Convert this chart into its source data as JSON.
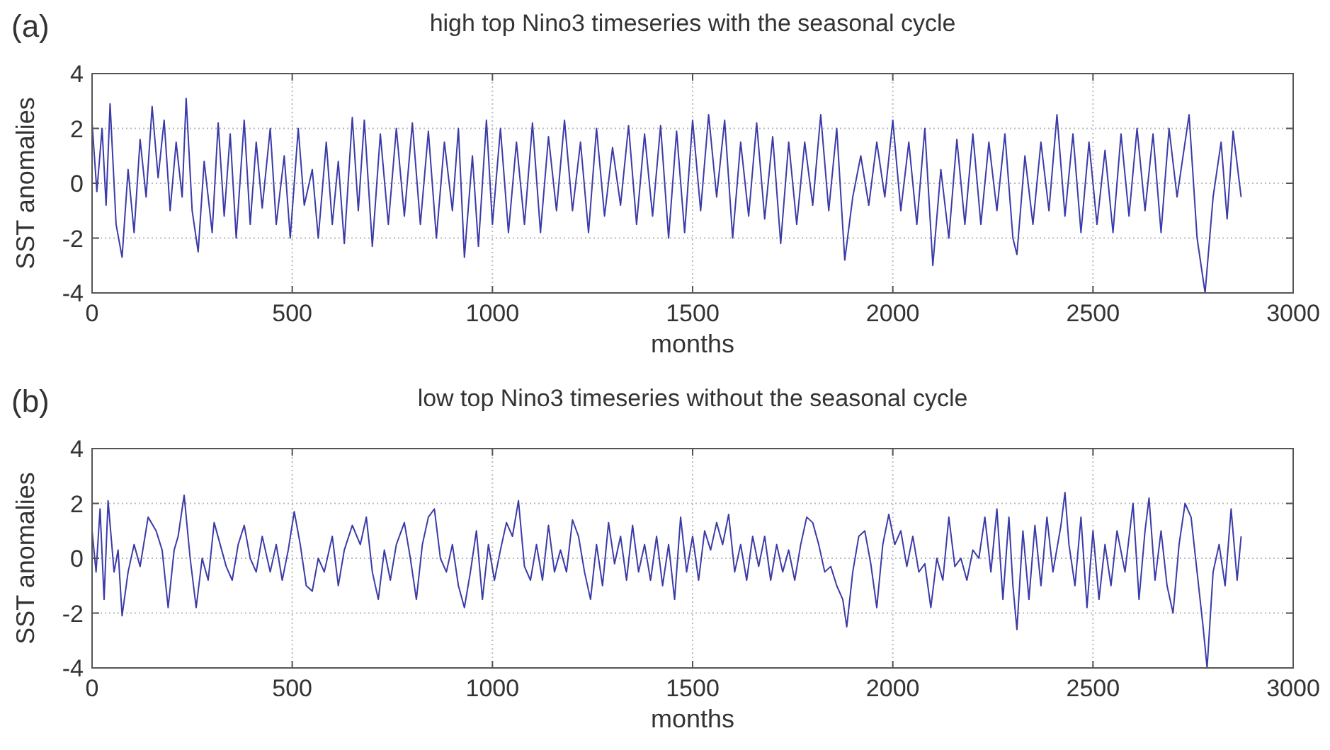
{
  "chart_data": [
    {
      "type": "line",
      "title": "high top Nino3 timeseries with the seasonal cycle",
      "xlabel": "months",
      "ylabel": "SST anomalies",
      "annotations": [
        "(a)"
      ],
      "xlim": [
        0,
        3000
      ],
      "xticks": [
        0,
        500,
        1000,
        1500,
        2000,
        2500,
        3000
      ],
      "ylim": [
        -4,
        4
      ],
      "yticks": [
        -4,
        -2,
        0,
        2,
        4
      ],
      "grid": true,
      "series": [
        {
          "color": "#3b3ba8",
          "x": [
            0,
            12,
            25,
            35,
            45,
            60,
            75,
            90,
            105,
            120,
            135,
            150,
            165,
            180,
            195,
            210,
            225,
            235,
            250,
            265,
            280,
            300,
            315,
            330,
            345,
            360,
            380,
            395,
            410,
            425,
            445,
            460,
            480,
            495,
            515,
            530,
            550,
            565,
            585,
            600,
            615,
            630,
            650,
            665,
            680,
            700,
            720,
            740,
            760,
            780,
            800,
            820,
            840,
            860,
            880,
            900,
            915,
            930,
            950,
            965,
            985,
            1000,
            1020,
            1040,
            1060,
            1080,
            1100,
            1120,
            1140,
            1160,
            1180,
            1200,
            1220,
            1240,
            1260,
            1280,
            1300,
            1320,
            1340,
            1360,
            1380,
            1400,
            1420,
            1440,
            1460,
            1480,
            1500,
            1520,
            1540,
            1560,
            1580,
            1600,
            1620,
            1640,
            1660,
            1680,
            1700,
            1720,
            1740,
            1760,
            1780,
            1800,
            1820,
            1840,
            1860,
            1880,
            1900,
            1920,
            1940,
            1960,
            1980,
            2000,
            2020,
            2040,
            2060,
            2080,
            2100,
            2120,
            2140,
            2160,
            2180,
            2200,
            2220,
            2240,
            2260,
            2280,
            2300,
            2310,
            2330,
            2350,
            2370,
            2390,
            2410,
            2430,
            2450,
            2470,
            2490,
            2510,
            2530,
            2550,
            2570,
            2590,
            2610,
            2630,
            2650,
            2670,
            2690,
            2710,
            2740,
            2760,
            2780,
            2800,
            2820,
            2835,
            2850,
            2870
          ],
          "values": [
            2.2,
            -0.3,
            2.0,
            -0.8,
            2.9,
            -1.5,
            -2.7,
            0.5,
            -1.8,
            1.6,
            -0.5,
            2.8,
            0.2,
            2.3,
            -1.0,
            1.5,
            -0.5,
            3.1,
            -1.0,
            -2.5,
            0.8,
            -1.8,
            2.2,
            -1.2,
            1.8,
            -2.0,
            2.3,
            -1.5,
            1.5,
            -0.9,
            2.0,
            -1.5,
            1.0,
            -2.0,
            2.0,
            -0.8,
            0.5,
            -2.0,
            1.5,
            -1.5,
            0.8,
            -2.2,
            2.4,
            -1.0,
            2.3,
            -2.3,
            1.8,
            -1.5,
            2.0,
            -1.2,
            2.2,
            -1.5,
            1.9,
            -2.0,
            1.5,
            -1.0,
            2.0,
            -2.7,
            1.0,
            -2.3,
            2.3,
            -1.5,
            2.0,
            -1.8,
            1.5,
            -1.5,
            2.2,
            -1.8,
            1.7,
            -1.0,
            2.3,
            -1.0,
            1.5,
            -1.8,
            2.0,
            -1.2,
            1.3,
            -0.8,
            2.1,
            -1.5,
            1.8,
            -1.2,
            2.1,
            -2.0,
            1.9,
            -1.8,
            2.3,
            -1.0,
            2.5,
            -0.5,
            2.3,
            -2.0,
            1.5,
            -1.2,
            2.2,
            -1.3,
            1.7,
            -2.2,
            1.5,
            -1.5,
            1.5,
            -0.8,
            2.5,
            -1.0,
            2.0,
            -2.8,
            -0.5,
            1.0,
            -0.8,
            1.5,
            -0.5,
            2.3,
            -1.0,
            1.5,
            -1.5,
            2.0,
            -3.0,
            0.5,
            -2.0,
            1.6,
            -1.5,
            1.8,
            -1.5,
            1.5,
            -1.0,
            1.8,
            -2.0,
            -2.6,
            1.0,
            -1.5,
            1.5,
            -1.0,
            2.5,
            -1.2,
            1.8,
            -1.8,
            1.5,
            -1.5,
            1.2,
            -1.8,
            1.8,
            -1.2,
            2.0,
            -1.0,
            1.8,
            -1.8,
            2.0,
            -0.5,
            2.5,
            -2.0,
            -4.0,
            -0.5,
            1.5,
            -1.3,
            1.9,
            -0.5
          ]
        }
      ]
    },
    {
      "type": "line",
      "title": "low top Nino3 timeseries without the seasonal cycle",
      "xlabel": "months",
      "ylabel": "SST anomalies",
      "annotations": [
        "(b)"
      ],
      "xlim": [
        0,
        3000
      ],
      "xticks": [
        0,
        500,
        1000,
        1500,
        2000,
        2500,
        3000
      ],
      "ylim": [
        -4,
        4
      ],
      "yticks": [
        -4,
        -2,
        0,
        2,
        4
      ],
      "grid": true,
      "series": [
        {
          "color": "#3b3ba8",
          "x": [
            0,
            10,
            20,
            30,
            40,
            55,
            65,
            75,
            90,
            105,
            120,
            140,
            160,
            175,
            190,
            205,
            215,
            230,
            245,
            260,
            275,
            290,
            305,
            320,
            335,
            350,
            365,
            380,
            395,
            410,
            425,
            445,
            460,
            475,
            490,
            505,
            520,
            535,
            550,
            565,
            580,
            600,
            615,
            630,
            650,
            670,
            685,
            700,
            715,
            730,
            745,
            760,
            780,
            795,
            810,
            825,
            840,
            855,
            870,
            885,
            900,
            915,
            930,
            945,
            960,
            975,
            990,
            1005,
            1020,
            1035,
            1050,
            1065,
            1080,
            1095,
            1110,
            1125,
            1140,
            1155,
            1170,
            1185,
            1200,
            1215,
            1230,
            1245,
            1260,
            1275,
            1290,
            1305,
            1320,
            1335,
            1350,
            1365,
            1380,
            1395,
            1410,
            1425,
            1440,
            1455,
            1470,
            1485,
            1500,
            1515,
            1530,
            1545,
            1560,
            1575,
            1590,
            1605,
            1620,
            1635,
            1650,
            1665,
            1680,
            1695,
            1710,
            1725,
            1740,
            1755,
            1770,
            1785,
            1800,
            1815,
            1830,
            1845,
            1860,
            1875,
            1885,
            1900,
            1915,
            1930,
            1945,
            1960,
            1975,
            1990,
            2005,
            2020,
            2035,
            2050,
            2065,
            2080,
            2095,
            2110,
            2125,
            2140,
            2155,
            2170,
            2185,
            2200,
            2215,
            2230,
            2245,
            2260,
            2275,
            2290,
            2300,
            2310,
            2325,
            2340,
            2355,
            2370,
            2385,
            2400,
            2420,
            2430,
            2440,
            2455,
            2470,
            2485,
            2500,
            2515,
            2530,
            2545,
            2560,
            2580,
            2600,
            2615,
            2630,
            2640,
            2655,
            2670,
            2685,
            2700,
            2715,
            2730,
            2745,
            2760,
            2775,
            2785,
            2800,
            2815,
            2830,
            2845,
            2860,
            2870
          ],
          "values": [
            1.0,
            -0.5,
            1.8,
            -1.5,
            2.1,
            -0.5,
            0.3,
            -2.1,
            -0.5,
            0.5,
            -0.3,
            1.5,
            1.0,
            0.3,
            -1.8,
            0.3,
            0.8,
            2.3,
            0.0,
            -1.8,
            0.0,
            -0.8,
            1.3,
            0.5,
            -0.3,
            -0.8,
            0.5,
            1.2,
            0.0,
            -0.5,
            0.8,
            -0.5,
            0.5,
            -0.8,
            0.3,
            1.7,
            0.5,
            -1.0,
            -1.2,
            0.0,
            -0.5,
            0.8,
            -1.0,
            0.3,
            1.2,
            0.5,
            1.5,
            -0.5,
            -1.5,
            0.3,
            -0.8,
            0.5,
            1.3,
            0.0,
            -1.5,
            0.5,
            1.5,
            1.8,
            0.0,
            -0.5,
            0.5,
            -1.0,
            -1.8,
            -0.5,
            1.0,
            -1.5,
            0.5,
            -0.8,
            0.3,
            1.3,
            0.8,
            2.1,
            -0.3,
            -0.8,
            0.5,
            -0.8,
            1.2,
            -0.5,
            0.3,
            -0.5,
            1.4,
            0.8,
            -0.5,
            -1.5,
            0.5,
            -1.0,
            1.3,
            -0.2,
            0.8,
            -0.8,
            1.2,
            -0.5,
            0.5,
            -0.8,
            0.8,
            -1.0,
            0.5,
            -1.5,
            1.5,
            -0.5,
            0.8,
            -0.8,
            1.0,
            0.3,
            1.3,
            0.5,
            1.6,
            -0.5,
            0.5,
            -0.8,
            0.8,
            -0.3,
            0.8,
            -0.8,
            0.5,
            -0.5,
            0.3,
            -0.8,
            0.5,
            1.5,
            1.3,
            0.5,
            -0.5,
            -0.3,
            -1.0,
            -1.5,
            -2.5,
            -0.5,
            0.8,
            1.0,
            -0.2,
            -1.8,
            0.5,
            1.6,
            0.5,
            1.0,
            -0.3,
            0.8,
            -0.5,
            -0.2,
            -1.8,
            0.0,
            -0.8,
            1.5,
            -0.3,
            0.0,
            -0.8,
            0.3,
            0.0,
            1.5,
            -0.5,
            1.8,
            -1.5,
            1.5,
            -1.0,
            -2.6,
            1.0,
            -1.5,
            1.2,
            -1.0,
            1.5,
            -0.5,
            1.2,
            2.4,
            0.5,
            -1.0,
            1.5,
            -1.8,
            1.0,
            -1.5,
            0.5,
            -1.0,
            1.0,
            -0.5,
            2.0,
            -1.5,
            1.0,
            2.2,
            -0.8,
            1.0,
            -1.0,
            -2.0,
            0.5,
            2.0,
            1.5,
            -0.5,
            -2.5,
            -4.0,
            -0.5,
            0.5,
            -1.0,
            1.8,
            -0.8,
            0.8
          ]
        }
      ]
    }
  ]
}
